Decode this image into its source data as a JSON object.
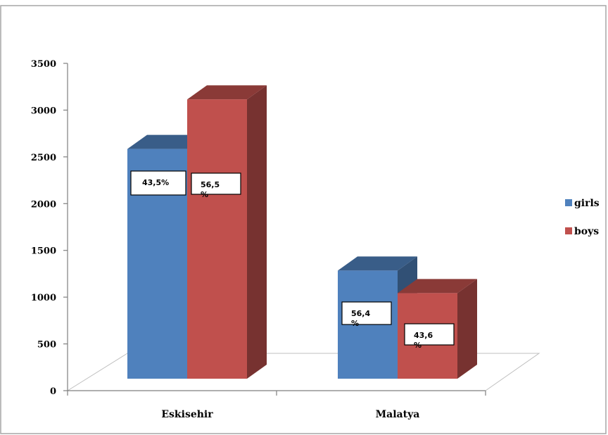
{
  "chart_data": {
    "type": "bar",
    "categories": [
      "Eskisehir",
      "Malatya"
    ],
    "series": [
      {
        "name": "girls",
        "color": "#4f81bd",
        "values": [
          2550,
          1200
        ],
        "labels": [
          "43,5%",
          "56,4\n%"
        ]
      },
      {
        "name": "boys",
        "color": "#c0504d",
        "values": [
          3100,
          950
        ],
        "labels": [
          "56,5\n%",
          "43,6\n%"
        ]
      }
    ],
    "yticks": [
      0,
      500,
      1000,
      1500,
      2000,
      2500,
      3000,
      3500
    ],
    "ylim": [
      0,
      3500
    ],
    "legend_position": "right",
    "grid": false
  }
}
